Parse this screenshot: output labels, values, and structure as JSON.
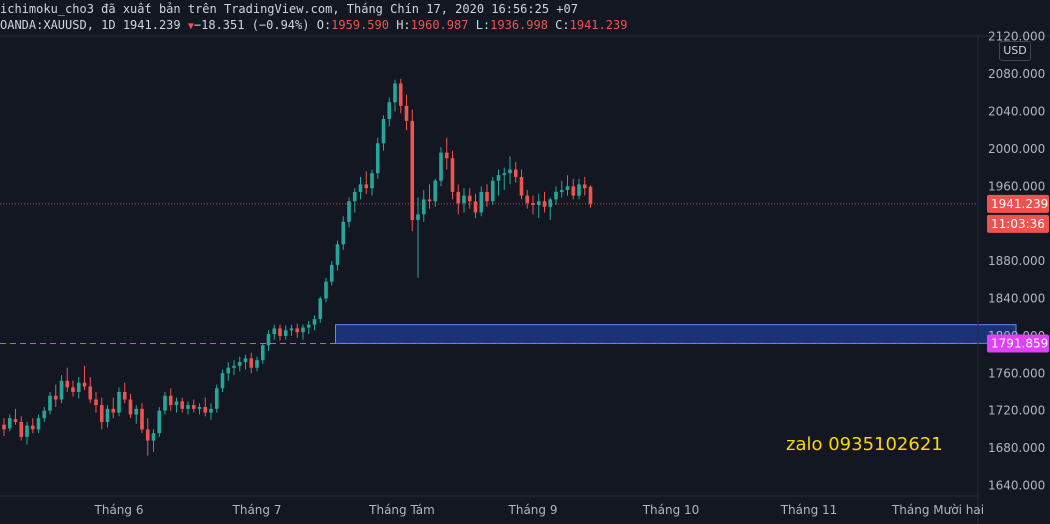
{
  "header": {
    "publish_line": "ichimoku_cho3 đã xuất bản trên TradingView.com, Tháng Chín 17, 2020 16:56:25 +07",
    "symbol": "OANDA:XAUUSD, 1D",
    "last": "1941.239",
    "change": "−18.351 (−0.94%)",
    "o_label": "O:",
    "o_value": "1959.590",
    "h_label": "H:",
    "h_value": "1960.987",
    "l_label": "L:",
    "l_value": "1936.998",
    "c_label": "C:",
    "c_value": "1941.239"
  },
  "currency_button": "USD",
  "watermark": "zalo 0935102621",
  "price_badge": {
    "value": "1941.239",
    "countdown": "11:03:36",
    "color": "#ef5350"
  },
  "level_badge": {
    "value": "1791.859",
    "color": "#e040fb"
  },
  "colors": {
    "up": "#26a69a",
    "down": "#ef5350",
    "zone_fill": "#2962ff",
    "level_line": "#e040fb",
    "background": "#131722"
  },
  "chart_data": {
    "type": "candlestick",
    "price_axis": {
      "ticks": [
        1640,
        1680,
        1720,
        1760,
        1800,
        1840,
        1880,
        1920,
        1960,
        2000,
        2040,
        2080,
        2120
      ],
      "tick_labels": [
        "1640.000",
        "1680.000",
        "1720.000",
        "1760.000",
        "1800.000",
        "1840.000",
        "1880.000",
        "1920.000",
        "1960.000",
        "2000.000",
        "2040.000",
        "2080.000",
        "2120.000"
      ],
      "range": [
        1628,
        2124
      ]
    },
    "time_axis": {
      "labels": [
        "Tháng 6",
        "Tháng 7",
        "Tháng Tám",
        "Tháng 9",
        "Tháng 10",
        "Tháng 11",
        "Tháng Mười hai"
      ]
    },
    "zone": {
      "from_bar": 58,
      "to_bar": 176,
      "low": 1792,
      "high": 1812
    },
    "horizontal_level": 1791.859,
    "last_price": 1941.239,
    "candles": [
      [
        1705,
        1712,
        1693,
        1700
      ],
      [
        1701,
        1716,
        1698,
        1712
      ],
      [
        1711,
        1722,
        1705,
        1708
      ],
      [
        1708,
        1714,
        1688,
        1692
      ],
      [
        1692,
        1708,
        1684,
        1704
      ],
      [
        1704,
        1712,
        1696,
        1700
      ],
      [
        1700,
        1716,
        1696,
        1712
      ],
      [
        1712,
        1724,
        1708,
        1720
      ],
      [
        1720,
        1740,
        1716,
        1736
      ],
      [
        1736,
        1748,
        1724,
        1732
      ],
      [
        1732,
        1758,
        1728,
        1752
      ],
      [
        1752,
        1766,
        1740,
        1745
      ],
      [
        1745,
        1752,
        1735,
        1740
      ],
      [
        1740,
        1756,
        1733,
        1750
      ],
      [
        1750,
        1768,
        1742,
        1746
      ],
      [
        1746,
        1756,
        1728,
        1732
      ],
      [
        1732,
        1740,
        1718,
        1726
      ],
      [
        1726,
        1734,
        1700,
        1708
      ],
      [
        1708,
        1726,
        1702,
        1722
      ],
      [
        1722,
        1734,
        1712,
        1718
      ],
      [
        1718,
        1745,
        1714,
        1740
      ],
      [
        1740,
        1750,
        1728,
        1732
      ],
      [
        1732,
        1738,
        1712,
        1716
      ],
      [
        1716,
        1726,
        1706,
        1722
      ],
      [
        1722,
        1728,
        1696,
        1700
      ],
      [
        1700,
        1712,
        1672,
        1688
      ],
      [
        1688,
        1700,
        1676,
        1696
      ],
      [
        1696,
        1724,
        1692,
        1720
      ],
      [
        1720,
        1740,
        1716,
        1736
      ],
      [
        1736,
        1744,
        1720,
        1726
      ],
      [
        1726,
        1734,
        1718,
        1730
      ],
      [
        1730,
        1734,
        1718,
        1722
      ],
      [
        1722,
        1730,
        1716,
        1726
      ],
      [
        1726,
        1732,
        1718,
        1722
      ],
      [
        1722,
        1728,
        1716,
        1724
      ],
      [
        1724,
        1734,
        1714,
        1718
      ],
      [
        1718,
        1728,
        1710,
        1722
      ],
      [
        1722,
        1748,
        1718,
        1744
      ],
      [
        1744,
        1764,
        1740,
        1760
      ],
      [
        1760,
        1772,
        1752,
        1766
      ],
      [
        1766,
        1774,
        1758,
        1768
      ],
      [
        1768,
        1778,
        1762,
        1772
      ],
      [
        1772,
        1780,
        1764,
        1776
      ],
      [
        1776,
        1782,
        1760,
        1766
      ],
      [
        1766,
        1778,
        1762,
        1774
      ],
      [
        1774,
        1792,
        1770,
        1790
      ],
      [
        1790,
        1806,
        1784,
        1802
      ],
      [
        1802,
        1812,
        1796,
        1808
      ],
      [
        1808,
        1812,
        1795,
        1800
      ],
      [
        1800,
        1811,
        1796,
        1806
      ],
      [
        1806,
        1812,
        1800,
        1808
      ],
      [
        1808,
        1813,
        1798,
        1804
      ],
      [
        1804,
        1812,
        1796,
        1809
      ],
      [
        1809,
        1816,
        1802,
        1812
      ],
      [
        1812,
        1822,
        1806,
        1818
      ],
      [
        1818,
        1842,
        1814,
        1840
      ],
      [
        1840,
        1862,
        1836,
        1858
      ],
      [
        1858,
        1880,
        1854,
        1876
      ],
      [
        1876,
        1902,
        1870,
        1898
      ],
      [
        1898,
        1928,
        1892,
        1922
      ],
      [
        1922,
        1948,
        1916,
        1944
      ],
      [
        1944,
        1958,
        1932,
        1954
      ],
      [
        1954,
        1970,
        1946,
        1962
      ],
      [
        1962,
        1976,
        1952,
        1958
      ],
      [
        1958,
        1978,
        1950,
        1974
      ],
      [
        1974,
        2012,
        1968,
        2006
      ],
      [
        2006,
        2036,
        1998,
        2032
      ],
      [
        2032,
        2055,
        2024,
        2050
      ],
      [
        2050,
        2074,
        2040,
        2070
      ],
      [
        2070,
        2075,
        2038,
        2046
      ],
      [
        2046,
        2058,
        2020,
        2030
      ],
      [
        2030,
        2042,
        1912,
        1924
      ],
      [
        1924,
        1948,
        1862,
        1930
      ],
      [
        1930,
        1956,
        1922,
        1946
      ],
      [
        1946,
        1962,
        1936,
        1944
      ],
      [
        1944,
        1968,
        1938,
        1966
      ],
      [
        1966,
        2002,
        1960,
        1996
      ],
      [
        1996,
        2012,
        1978,
        1990
      ],
      [
        1990,
        1998,
        1946,
        1954
      ],
      [
        1954,
        1962,
        1930,
        1942
      ],
      [
        1942,
        1958,
        1932,
        1950
      ],
      [
        1950,
        1958,
        1936,
        1944
      ],
      [
        1944,
        1952,
        1926,
        1932
      ],
      [
        1932,
        1960,
        1928,
        1954
      ],
      [
        1954,
        1962,
        1938,
        1944
      ],
      [
        1944,
        1970,
        1940,
        1966
      ],
      [
        1966,
        1978,
        1950,
        1972
      ],
      [
        1972,
        1980,
        1956,
        1974
      ],
      [
        1974,
        1992,
        1962,
        1978
      ],
      [
        1978,
        1986,
        1964,
        1970
      ],
      [
        1970,
        1978,
        1946,
        1950
      ],
      [
        1950,
        1956,
        1936,
        1942
      ],
      [
        1942,
        1950,
        1930,
        1940
      ],
      [
        1940,
        1952,
        1926,
        1944
      ],
      [
        1944,
        1954,
        1932,
        1938
      ],
      [
        1938,
        1948,
        1924,
        1946
      ],
      [
        1946,
        1960,
        1940,
        1954
      ],
      [
        1954,
        1966,
        1948,
        1956
      ],
      [
        1956,
        1972,
        1950,
        1960
      ],
      [
        1960,
        1968,
        1946,
        1950
      ],
      [
        1950,
        1968,
        1946,
        1962
      ],
      [
        1962,
        1970,
        1950,
        1958
      ],
      [
        1959.59,
        1960.987,
        1936.998,
        1941.239
      ]
    ]
  }
}
